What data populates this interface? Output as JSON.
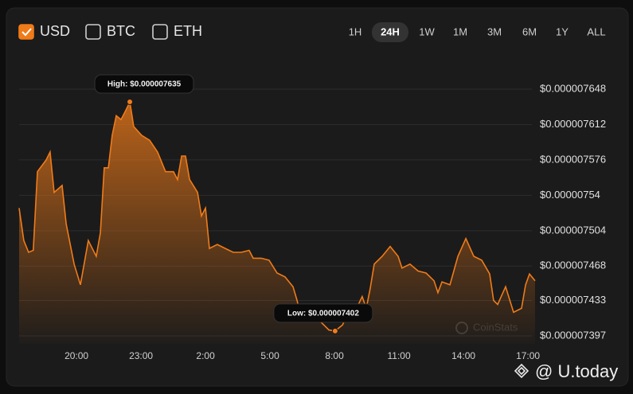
{
  "currency_options": [
    {
      "label": "USD",
      "checked": true
    },
    {
      "label": "BTC",
      "checked": false
    },
    {
      "label": "ETH",
      "checked": false
    }
  ],
  "timeframes": [
    {
      "label": "1H",
      "active": false
    },
    {
      "label": "24H",
      "active": true
    },
    {
      "label": "1W",
      "active": false
    },
    {
      "label": "1M",
      "active": false
    },
    {
      "label": "3M",
      "active": false
    },
    {
      "label": "6M",
      "active": false
    },
    {
      "label": "1Y",
      "active": false
    },
    {
      "label": "ALL",
      "active": false
    }
  ],
  "chart_data": {
    "type": "line",
    "color": "#f07b19",
    "grid": true,
    "watermark": "CoinStats",
    "x": [
      17.33,
      17.55,
      17.77,
      17.99,
      18.18,
      18.59,
      18.77,
      18.96,
      19.33,
      19.52,
      19.89,
      20.18,
      20.55,
      20.92,
      21.11,
      21.29,
      21.48,
      21.66,
      21.85,
      22.07,
      22.26,
      22.48,
      22.66,
      23.03,
      23.4,
      23.77,
      24.14,
      24.51,
      24.7,
      24.89,
      25.07,
      25.26,
      25.63,
      25.81,
      26.0,
      26.18,
      26.55,
      26.92,
      27.29,
      27.66,
      28.03,
      28.22,
      28.59,
      28.96,
      29.33,
      29.7,
      30.07,
      30.26,
      30.44,
      31.0,
      31.37,
      31.74,
      32.03,
      32.37,
      32.55,
      32.74,
      33.11,
      33.29,
      33.48,
      33.66,
      33.85,
      34.22,
      34.59,
      34.96,
      35.14,
      35.51,
      35.89,
      36.26,
      36.63,
      36.81,
      37.0,
      37.37,
      37.74,
      38.11,
      38.48,
      38.85,
      39.22,
      39.4,
      39.59,
      39.96,
      40.33,
      40.7,
      40.89,
      41.07,
      41.33
    ],
    "values": [
      7.527e-06,
      7.494e-06,
      7.482e-06,
      7.484e-06,
      7.564e-06,
      7.576e-06,
      7.584e-06,
      7.543e-06,
      7.55e-06,
      7.511e-06,
      7.47e-06,
      7.449e-06,
      7.494e-06,
      7.478e-06,
      7.502e-06,
      7.568e-06,
      7.568e-06,
      7.601e-06,
      7.621e-06,
      7.617e-06,
      7.625e-06,
      7.635e-06,
      7.61e-06,
      7.601e-06,
      7.596e-06,
      7.584e-06,
      7.564e-06,
      7.564e-06,
      7.556e-06,
      7.58e-06,
      7.58e-06,
      7.556e-06,
      7.543e-06,
      7.519e-06,
      7.527e-06,
      7.486e-06,
      7.49e-06,
      7.486e-06,
      7.482e-06,
      7.482e-06,
      7.484e-06,
      7.476e-06,
      7.476e-06,
      7.474e-06,
      7.461e-06,
      7.457e-06,
      7.447e-06,
      7.433e-06,
      7.416e-06,
      7.414e-06,
      7.411e-06,
      7.403e-06,
      7.402e-06,
      7.408e-06,
      7.416e-06,
      7.412e-06,
      7.429e-06,
      7.437e-06,
      7.425e-06,
      7.445e-06,
      7.47e-06,
      7.478e-06,
      7.488e-06,
      7.478e-06,
      7.466e-06,
      7.47e-06,
      7.463e-06,
      7.461e-06,
      7.453e-06,
      7.441e-06,
      7.452e-06,
      7.449e-06,
      7.478e-06,
      7.496e-06,
      7.478e-06,
      7.474e-06,
      7.46e-06,
      7.433e-06,
      7.429e-06,
      7.447e-06,
      7.421e-06,
      7.425e-06,
      7.449e-06,
      7.46e-06,
      7.453e-06
    ],
    "xlim": [
      17.33,
      41.33
    ],
    "xticks": [
      {
        "value": 20,
        "label": "20:00"
      },
      {
        "value": 23,
        "label": "23:00"
      },
      {
        "value": 26,
        "label": "2:00"
      },
      {
        "value": 29,
        "label": "5:00"
      },
      {
        "value": 32,
        "label": "8:00"
      },
      {
        "value": 35,
        "label": "11:00"
      },
      {
        "value": 38,
        "label": "14:00"
      },
      {
        "value": 41,
        "label": "17:00"
      }
    ],
    "ylim": [
      7.397e-06,
      7.648e-06
    ],
    "yticks": [
      {
        "value": 7.648e-06,
        "label": "$0.000007648"
      },
      {
        "value": 7.612e-06,
        "label": "$0.000007612"
      },
      {
        "value": 7.576e-06,
        "label": "$0.000007576"
      },
      {
        "value": 7.54e-06,
        "label": "$0.00000754"
      },
      {
        "value": 7.504e-06,
        "label": "$0.000007504"
      },
      {
        "value": 7.468e-06,
        "label": "$0.000007468"
      },
      {
        "value": 7.433e-06,
        "label": "$0.000007433"
      },
      {
        "value": 7.397e-06,
        "label": "$0.000007397"
      }
    ],
    "annotations": [
      {
        "text": "High: $0.000007635",
        "x": 22.48,
        "y": 7.635e-06
      },
      {
        "text": "Low: $0.000007402",
        "x": 32.03,
        "y": 7.402e-06
      }
    ]
  },
  "footer_brand": "@ U.today"
}
